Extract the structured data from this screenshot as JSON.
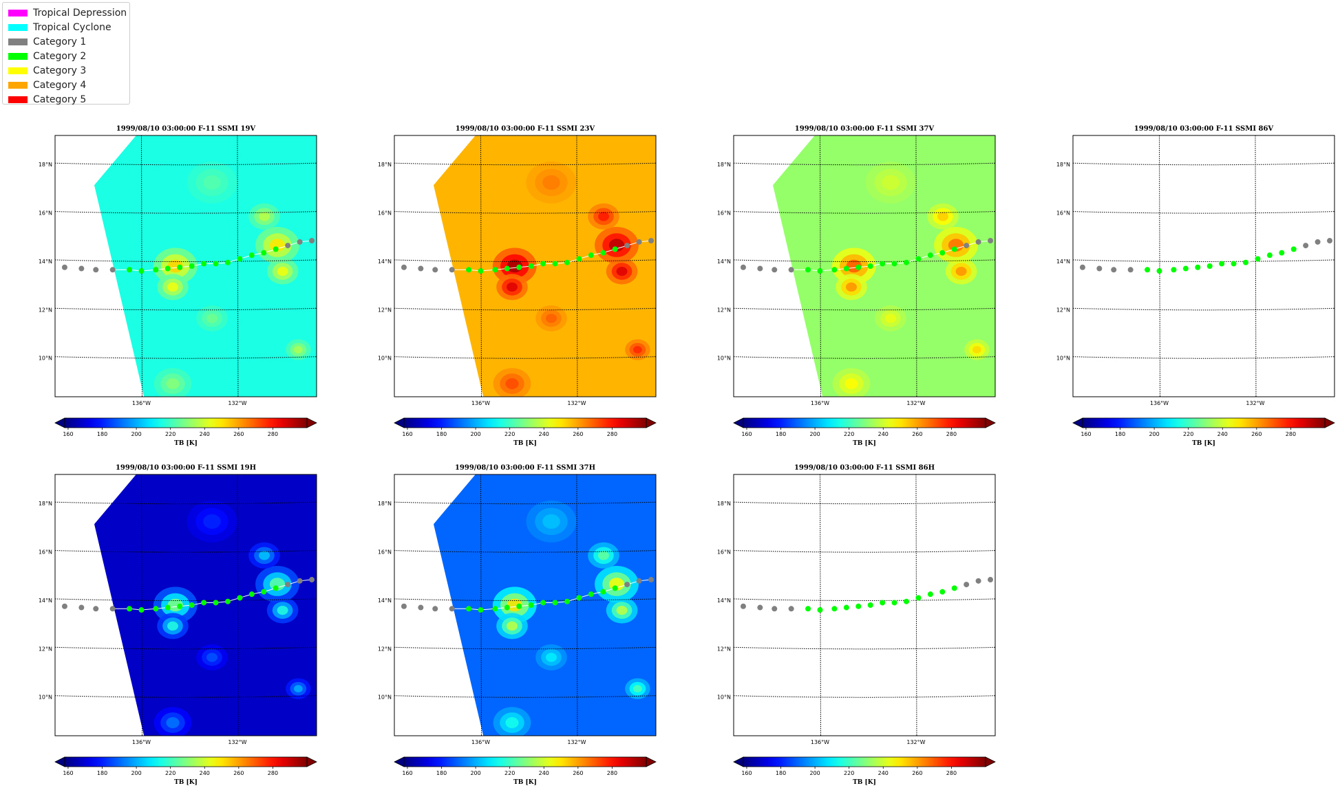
{
  "legend": {
    "items": [
      {
        "label": "Tropical Depression",
        "color": "#ff00ff"
      },
      {
        "label": "Tropical Cyclone",
        "color": "#00ffff"
      },
      {
        "label": "Category 1",
        "color": "#808080"
      },
      {
        "label": "Category 2",
        "color": "#00ff00"
      },
      {
        "label": "Category 3",
        "color": "#ffff00"
      },
      {
        "label": "Category 4",
        "color": "#ffa500"
      },
      {
        "label": "Category 5",
        "color": "#ff0000"
      }
    ]
  },
  "chart_data": [
    {
      "type": "heatmap",
      "title": "1999/08/10 03:00:00  F-11 SSMI 19V",
      "base_tb": 215,
      "has_data": true
    },
    {
      "type": "heatmap",
      "title": "1999/08/10 03:00:00  F-11 SSMI 23V",
      "base_tb": 257,
      "has_data": true
    },
    {
      "type": "heatmap",
      "title": "1999/08/10 03:00:00  F-11 SSMI 37V",
      "base_tb": 232,
      "has_data": true
    },
    {
      "type": "heatmap",
      "title": "1999/08/10 03:00:00  F-11 SSMI 86V",
      "base_tb": null,
      "has_data": false
    },
    {
      "type": "heatmap",
      "title": "1999/08/10 03:00:00  F-11 SSMI 19H",
      "base_tb": 168,
      "has_data": true
    },
    {
      "type": "heatmap",
      "title": "1999/08/10 03:00:00  F-11 SSMI 37H",
      "base_tb": 190,
      "has_data": true
    },
    {
      "type": "heatmap",
      "title": "1999/08/10 03:00:00  F-11 SSMI 86H",
      "base_tb": null,
      "has_data": false
    }
  ],
  "map": {
    "lat_ticks": [
      "18°N",
      "16°N",
      "14°N",
      "12°N",
      "10°N"
    ],
    "lat_values": [
      18,
      16,
      14,
      12,
      10
    ],
    "lon_ticks": [
      "136°W",
      "132°W"
    ],
    "lon_values": [
      -136,
      -132
    ],
    "lat_range": [
      8.4,
      19.2
    ],
    "lon_range": [
      -139.6,
      -128.7
    ]
  },
  "colorbar": {
    "ticks": [
      "160",
      "180",
      "200",
      "220",
      "240",
      "260",
      "280"
    ],
    "tick_values": [
      160,
      180,
      200,
      220,
      240,
      260,
      280
    ],
    "range": [
      158,
      300
    ],
    "label": "TB [K]",
    "extend": "both",
    "colormap": "jet"
  },
  "track": {
    "points": [
      {
        "lon": -139.2,
        "lat": 13.75,
        "category": "Category 1"
      },
      {
        "lon": -138.5,
        "lat": 13.7,
        "category": "Category 1"
      },
      {
        "lon": -137.9,
        "lat": 13.65,
        "category": "Category 1"
      },
      {
        "lon": -137.2,
        "lat": 13.65,
        "category": "Category 1"
      },
      {
        "lon": -136.5,
        "lat": 13.65,
        "category": "Category 2"
      },
      {
        "lon": -136.0,
        "lat": 13.6,
        "category": "Category 2"
      },
      {
        "lon": -135.4,
        "lat": 13.65,
        "category": "Category 2"
      },
      {
        "lon": -134.9,
        "lat": 13.7,
        "category": "Category 2"
      },
      {
        "lon": -134.4,
        "lat": 13.75,
        "category": "Category 2"
      },
      {
        "lon": -133.9,
        "lat": 13.8,
        "category": "Category 2"
      },
      {
        "lon": -133.4,
        "lat": 13.9,
        "category": "Category 2"
      },
      {
        "lon": -132.9,
        "lat": 13.9,
        "category": "Category 2"
      },
      {
        "lon": -132.4,
        "lat": 13.95,
        "category": "Category 2"
      },
      {
        "lon": -131.9,
        "lat": 14.1,
        "category": "Category 2"
      },
      {
        "lon": -131.4,
        "lat": 14.25,
        "category": "Category 2"
      },
      {
        "lon": -130.9,
        "lat": 14.35,
        "category": "Category 2"
      },
      {
        "lon": -130.4,
        "lat": 14.5,
        "category": "Category 2"
      },
      {
        "lon": -129.9,
        "lat": 14.65,
        "category": "Category 1"
      },
      {
        "lon": -129.4,
        "lat": 14.8,
        "category": "Category 1"
      },
      {
        "lon": -128.9,
        "lat": 14.85,
        "category": "Category 1"
      }
    ]
  }
}
